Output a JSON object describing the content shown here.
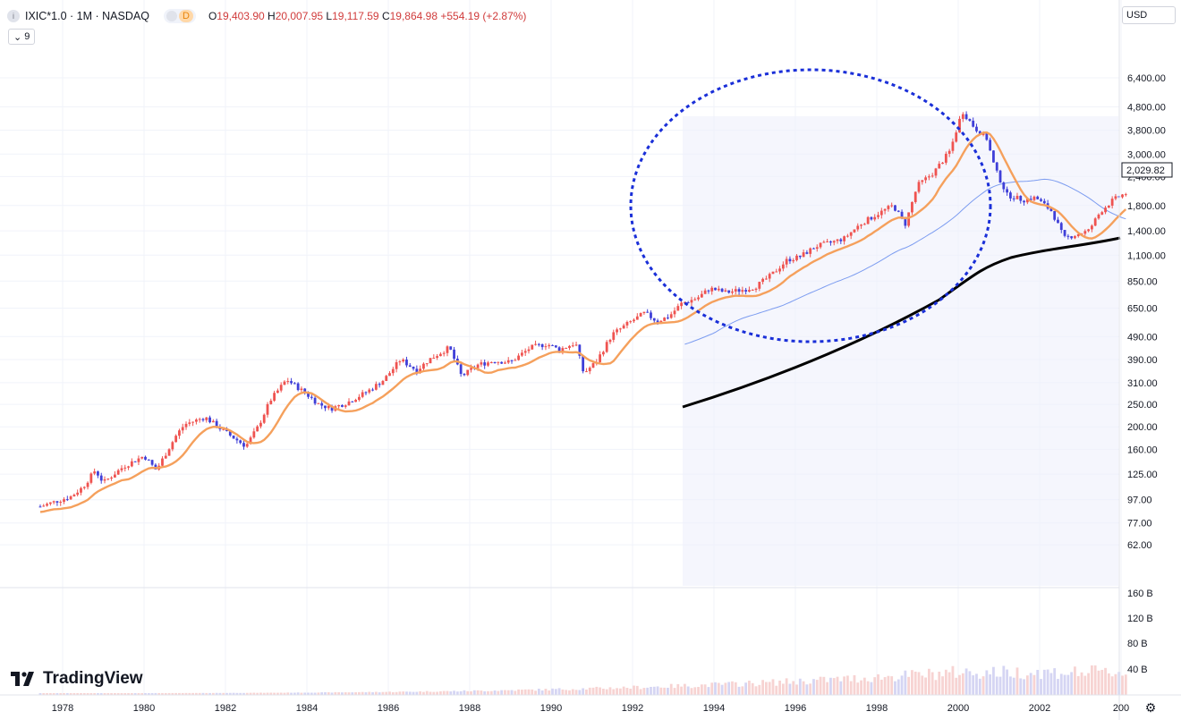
{
  "header": {
    "symbol_icon": "info-circle-icon",
    "symbol": "IXIC*1.0 · 1M · NASDAQ",
    "badge": "D",
    "ohlc": {
      "open_label": "O",
      "open": "19,403.90",
      "high_label": "H",
      "high": "20,007.95",
      "low_label": "L",
      "low": "19,117.59",
      "close_label": "C",
      "close": "19,864.98",
      "change": "+554.19 (+2.87%)"
    }
  },
  "indicators_button": {
    "icon": "chevron-down-icon",
    "count": "9"
  },
  "currency": "USD",
  "logo": "TradingView",
  "settings_icon": "gear-icon",
  "colors": {
    "up": "#ef5350",
    "down": "#3f3fd8",
    "ma_short": "#f5a05c",
    "ma_long": "#7c9cf0",
    "trend": "#000000",
    "ellipse": "#1a2fd8",
    "price_label_bg": "#ffffff"
  },
  "chart_data": {
    "type": "candlestick",
    "scale": "log",
    "ylim": [
      60,
      7000
    ],
    "price_ticks": [
      "6,400.00",
      "4,800.00",
      "3,800.00",
      "3,000.00",
      "2,400.00",
      "1,800.00",
      "1,400.00",
      "1,100.00",
      "850.00",
      "650.00",
      "490.00",
      "390.00",
      "310.00",
      "250.00",
      "200.00",
      "160.00",
      "125.00",
      "97.00",
      "77.00",
      "62.00"
    ],
    "last_price": "2,029.82",
    "volume_ticks": [
      "160 B",
      "120 B",
      "80 B",
      "40 B"
    ],
    "x_ticks": [
      "1978",
      "1980",
      "1982",
      "1984",
      "1986",
      "1988",
      "1990",
      "1992",
      "1994",
      "1996",
      "1998",
      "2000",
      "2002",
      "200"
    ],
    "closes_by_year": [
      [
        1977.4,
        90
      ],
      [
        1977.8,
        95
      ],
      [
        1978.2,
        100
      ],
      [
        1978.5,
        110
      ],
      [
        1978.8,
        130
      ],
      [
        1979.0,
        115
      ],
      [
        1979.5,
        135
      ],
      [
        1980.0,
        150
      ],
      [
        1980.3,
        130
      ],
      [
        1980.8,
        185
      ],
      [
        1981.0,
        205
      ],
      [
        1981.5,
        220
      ],
      [
        1981.9,
        195
      ],
      [
        1982.5,
        165
      ],
      [
        1982.8,
        200
      ],
      [
        1983.1,
        260
      ],
      [
        1983.5,
        320
      ],
      [
        1983.9,
        285
      ],
      [
        1984.3,
        250
      ],
      [
        1984.6,
        240
      ],
      [
        1985.0,
        255
      ],
      [
        1985.5,
        285
      ],
      [
        1985.9,
        320
      ],
      [
        1986.3,
        390
      ],
      [
        1986.7,
        350
      ],
      [
        1987.0,
        390
      ],
      [
        1987.5,
        440
      ],
      [
        1987.8,
        330
      ],
      [
        1988.2,
        370
      ],
      [
        1988.6,
        385
      ],
      [
        1989.0,
        380
      ],
      [
        1989.5,
        440
      ],
      [
        1989.9,
        455
      ],
      [
        1990.2,
        430
      ],
      [
        1990.6,
        460
      ],
      [
        1990.8,
        340
      ],
      [
        1991.1,
        380
      ],
      [
        1991.5,
        500
      ],
      [
        1991.9,
        560
      ],
      [
        1992.3,
        620
      ],
      [
        1992.6,
        570
      ],
      [
        1992.9,
        600
      ],
      [
        1993.2,
        680
      ],
      [
        1993.6,
        720
      ],
      [
        1993.9,
        790
      ],
      [
        1994.3,
        760
      ],
      [
        1994.7,
        780
      ],
      [
        1995.0,
        800
      ],
      [
        1995.4,
        900
      ],
      [
        1995.8,
        1050
      ],
      [
        1996.1,
        1080
      ],
      [
        1996.5,
        1200
      ],
      [
        1996.9,
        1250
      ],
      [
        1997.2,
        1300
      ],
      [
        1997.6,
        1500
      ],
      [
        1998.0,
        1650
      ],
      [
        1998.4,
        1800
      ],
      [
        1998.7,
        1500
      ],
      [
        1999.0,
        2200
      ],
      [
        1999.4,
        2500
      ],
      [
        1999.8,
        3100
      ],
      [
        2000.1,
        4600
      ],
      [
        2000.4,
        3900
      ],
      [
        2000.7,
        3500
      ],
      [
        2000.9,
        2600
      ],
      [
        2001.2,
        2000
      ],
      [
        2001.6,
        1900
      ],
      [
        2001.9,
        1950
      ],
      [
        2002.3,
        1700
      ],
      [
        2002.6,
        1300
      ],
      [
        2002.9,
        1350
      ],
      [
        2003.2,
        1400
      ],
      [
        2003.5,
        1700
      ],
      [
        2003.8,
        1900
      ],
      [
        2004.1,
        2030
      ]
    ]
  }
}
